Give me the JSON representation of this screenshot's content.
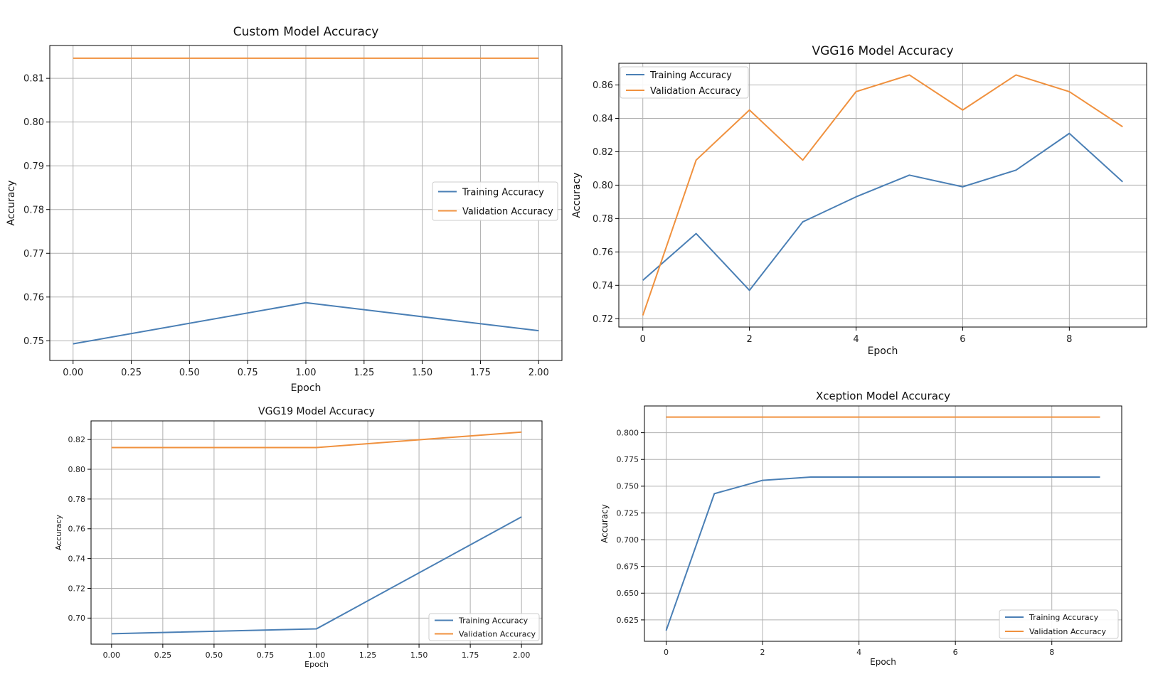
{
  "colors": {
    "training": "#4a7fb5",
    "validation": "#f0913e"
  },
  "chart_data": [
    {
      "type": "line",
      "title": "Custom Model Accuracy",
      "xlabel": "Epoch",
      "ylabel": "Accuracy",
      "x": [
        0,
        1,
        2
      ],
      "xlim": [
        -0.1,
        2.1
      ],
      "ylim": [
        0.7455,
        0.8175
      ],
      "xticks": [
        "0.00",
        "0.25",
        "0.50",
        "0.75",
        "1.00",
        "1.25",
        "1.50",
        "1.75",
        "2.00"
      ],
      "yticks": [
        "0.75",
        "0.76",
        "0.77",
        "0.78",
        "0.79",
        "0.80",
        "0.81"
      ],
      "grid": true,
      "legend_position": "center-right",
      "series": [
        {
          "name": "Training Accuracy",
          "values": [
            0.7493,
            0.7587,
            0.7523
          ]
        },
        {
          "name": "Validation Accuracy",
          "values": [
            0.8146,
            0.8146,
            0.8146
          ]
        }
      ]
    },
    {
      "type": "line",
      "title": "VGG16 Model Accuracy",
      "xlabel": "Epoch",
      "ylabel": "Accuracy",
      "x": [
        0,
        1,
        2,
        3,
        4,
        5,
        6,
        7,
        8,
        9
      ],
      "xlim": [
        -0.45,
        9.45
      ],
      "ylim": [
        0.715,
        0.873
      ],
      "xticks": [
        "0",
        "2",
        "4",
        "6",
        "8"
      ],
      "yticks": [
        "0.72",
        "0.74",
        "0.76",
        "0.78",
        "0.80",
        "0.82",
        "0.84",
        "0.86"
      ],
      "grid": true,
      "legend_position": "top-left",
      "series": [
        {
          "name": "Training Accuracy",
          "values": [
            0.743,
            0.771,
            0.737,
            0.778,
            0.793,
            0.806,
            0.799,
            0.809,
            0.831,
            0.802
          ]
        },
        {
          "name": "Validation Accuracy",
          "values": [
            0.722,
            0.815,
            0.845,
            0.815,
            0.856,
            0.866,
            0.845,
            0.866,
            0.856,
            0.835
          ]
        }
      ]
    },
    {
      "type": "line",
      "title": "VGG19 Model Accuracy",
      "xlabel": "Epoch",
      "ylabel": "Accuracy",
      "x": [
        0,
        1,
        2
      ],
      "xlim": [
        -0.1,
        2.1
      ],
      "ylim": [
        0.6825,
        0.8325
      ],
      "xticks": [
        "0.00",
        "0.25",
        "0.50",
        "0.75",
        "1.00",
        "1.25",
        "1.50",
        "1.75",
        "2.00"
      ],
      "yticks": [
        "0.70",
        "0.72",
        "0.74",
        "0.76",
        "0.78",
        "0.80",
        "0.82"
      ],
      "grid": true,
      "legend_position": "bottom-right",
      "series": [
        {
          "name": "Training Accuracy",
          "values": [
            0.6895,
            0.6928,
            0.768
          ]
        },
        {
          "name": "Validation Accuracy",
          "values": [
            0.8146,
            0.8146,
            0.825
          ]
        }
      ]
    },
    {
      "type": "line",
      "title": "Xception Model Accuracy",
      "xlabel": "Epoch",
      "ylabel": "Accuracy",
      "x": [
        0,
        1,
        2,
        3,
        4,
        5,
        6,
        7,
        8,
        9
      ],
      "xlim": [
        -0.45,
        9.45
      ],
      "ylim": [
        0.605,
        0.825
      ],
      "xticks": [
        "0",
        "2",
        "4",
        "6",
        "8"
      ],
      "yticks": [
        "0.625",
        "0.650",
        "0.675",
        "0.700",
        "0.725",
        "0.750",
        "0.775",
        "0.800"
      ],
      "grid": true,
      "legend_position": "bottom-right",
      "series": [
        {
          "name": "Training Accuracy",
          "values": [
            0.615,
            0.743,
            0.7555,
            0.7585,
            0.7585,
            0.7585,
            0.7585,
            0.7585,
            0.7585,
            0.7585
          ]
        },
        {
          "name": "Validation Accuracy",
          "values": [
            0.8146,
            0.8146,
            0.8146,
            0.8146,
            0.8146,
            0.8146,
            0.8146,
            0.8146,
            0.8146,
            0.8146
          ]
        }
      ]
    }
  ]
}
